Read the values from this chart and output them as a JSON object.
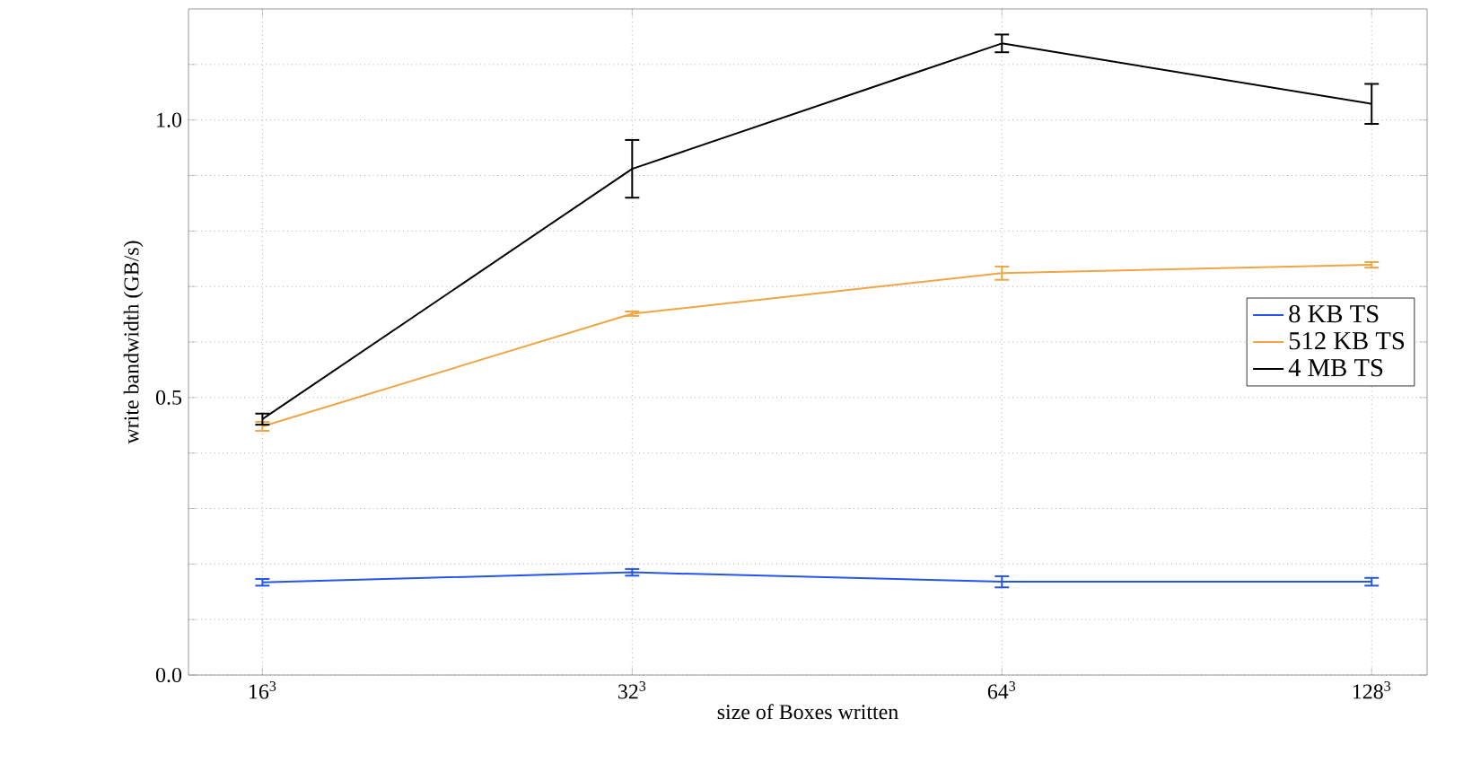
{
  "chart_data": {
    "type": "line",
    "xlabel": "size of Boxes written",
    "ylabel": "write bandwidth (GB/s)",
    "categories": [
      "16$^{3}$",
      "32$^{3}$",
      "64$^{3}$",
      "128$^{3}$"
    ],
    "series": [
      {
        "name": "8 KB TS",
        "color": "#2255f0",
        "values": [
          0.167,
          0.185,
          0.168,
          0.168
        ],
        "errors": [
          0.006,
          0.006,
          0.01,
          0.007
        ]
      },
      {
        "name": "512 KB TS",
        "color": "#f0a545",
        "values": [
          0.448,
          0.651,
          0.724,
          0.739
        ],
        "errors": [
          0.008,
          0.004,
          0.012,
          0.005
        ]
      },
      {
        "name": "4 MB TS",
        "color": "#000000",
        "values": [
          0.461,
          0.912,
          1.138,
          1.029
        ],
        "errors": [
          0.01,
          0.052,
          0.016,
          0.036
        ]
      }
    ],
    "ylim": [
      0,
      1.2
    ],
    "yticks": [
      {
        "value": 0,
        "label": "0.0"
      },
      {
        "value": 0.1,
        "label": null
      },
      {
        "value": 0.2,
        "label": null
      },
      {
        "value": 0.3,
        "label": null
      },
      {
        "value": 0.4,
        "label": null
      },
      0.5,
      {
        "value": 0.6,
        "label": null
      },
      {
        "value": 0.7,
        "label": null
      },
      {
        "value": 0.8,
        "label": null
      },
      {
        "value": 0.9,
        "label": null
      },
      {
        "value": 1,
        "label": "1.0"
      },
      {
        "value": 1.1,
        "label": null
      }
    ],
    "grid": true,
    "legend": "right",
    "marker": "none",
    "line_style": "solid"
  }
}
